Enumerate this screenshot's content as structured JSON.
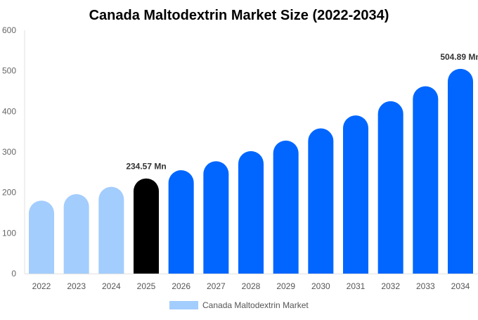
{
  "chart_data": {
    "type": "bar",
    "title": "Canada Maltodextrin Market Size (2022-2034)",
    "xlabel": "",
    "ylabel": "",
    "ylim": [
      0,
      600
    ],
    "yticks": [
      0,
      100,
      200,
      300,
      400,
      500,
      600
    ],
    "grid": false,
    "legend_position": "bottom",
    "categories": [
      "2022",
      "2023",
      "2024",
      "2025",
      "2026",
      "2027",
      "2028",
      "2029",
      "2030",
      "2031",
      "2032",
      "2033",
      "2034"
    ],
    "series": [
      {
        "name": "Canada Maltodextrin Market",
        "values": [
          180,
          196,
          214,
          234.57,
          255,
          277,
          302,
          328,
          358,
          390,
          425,
          462,
          504.89
        ]
      }
    ],
    "bar_colors": [
      "#a3cdfd",
      "#a3cdfd",
      "#a3cdfd",
      "#000000",
      "#0066ff",
      "#0066ff",
      "#0066ff",
      "#0066ff",
      "#0066ff",
      "#0066ff",
      "#0066ff",
      "#0066ff",
      "#0066ff"
    ],
    "legend_color": "#a3cdfd",
    "annotations": [
      {
        "category": "2025",
        "text": "234.57 Mn"
      },
      {
        "category": "2034",
        "text": "504.89 Mn"
      }
    ]
  }
}
